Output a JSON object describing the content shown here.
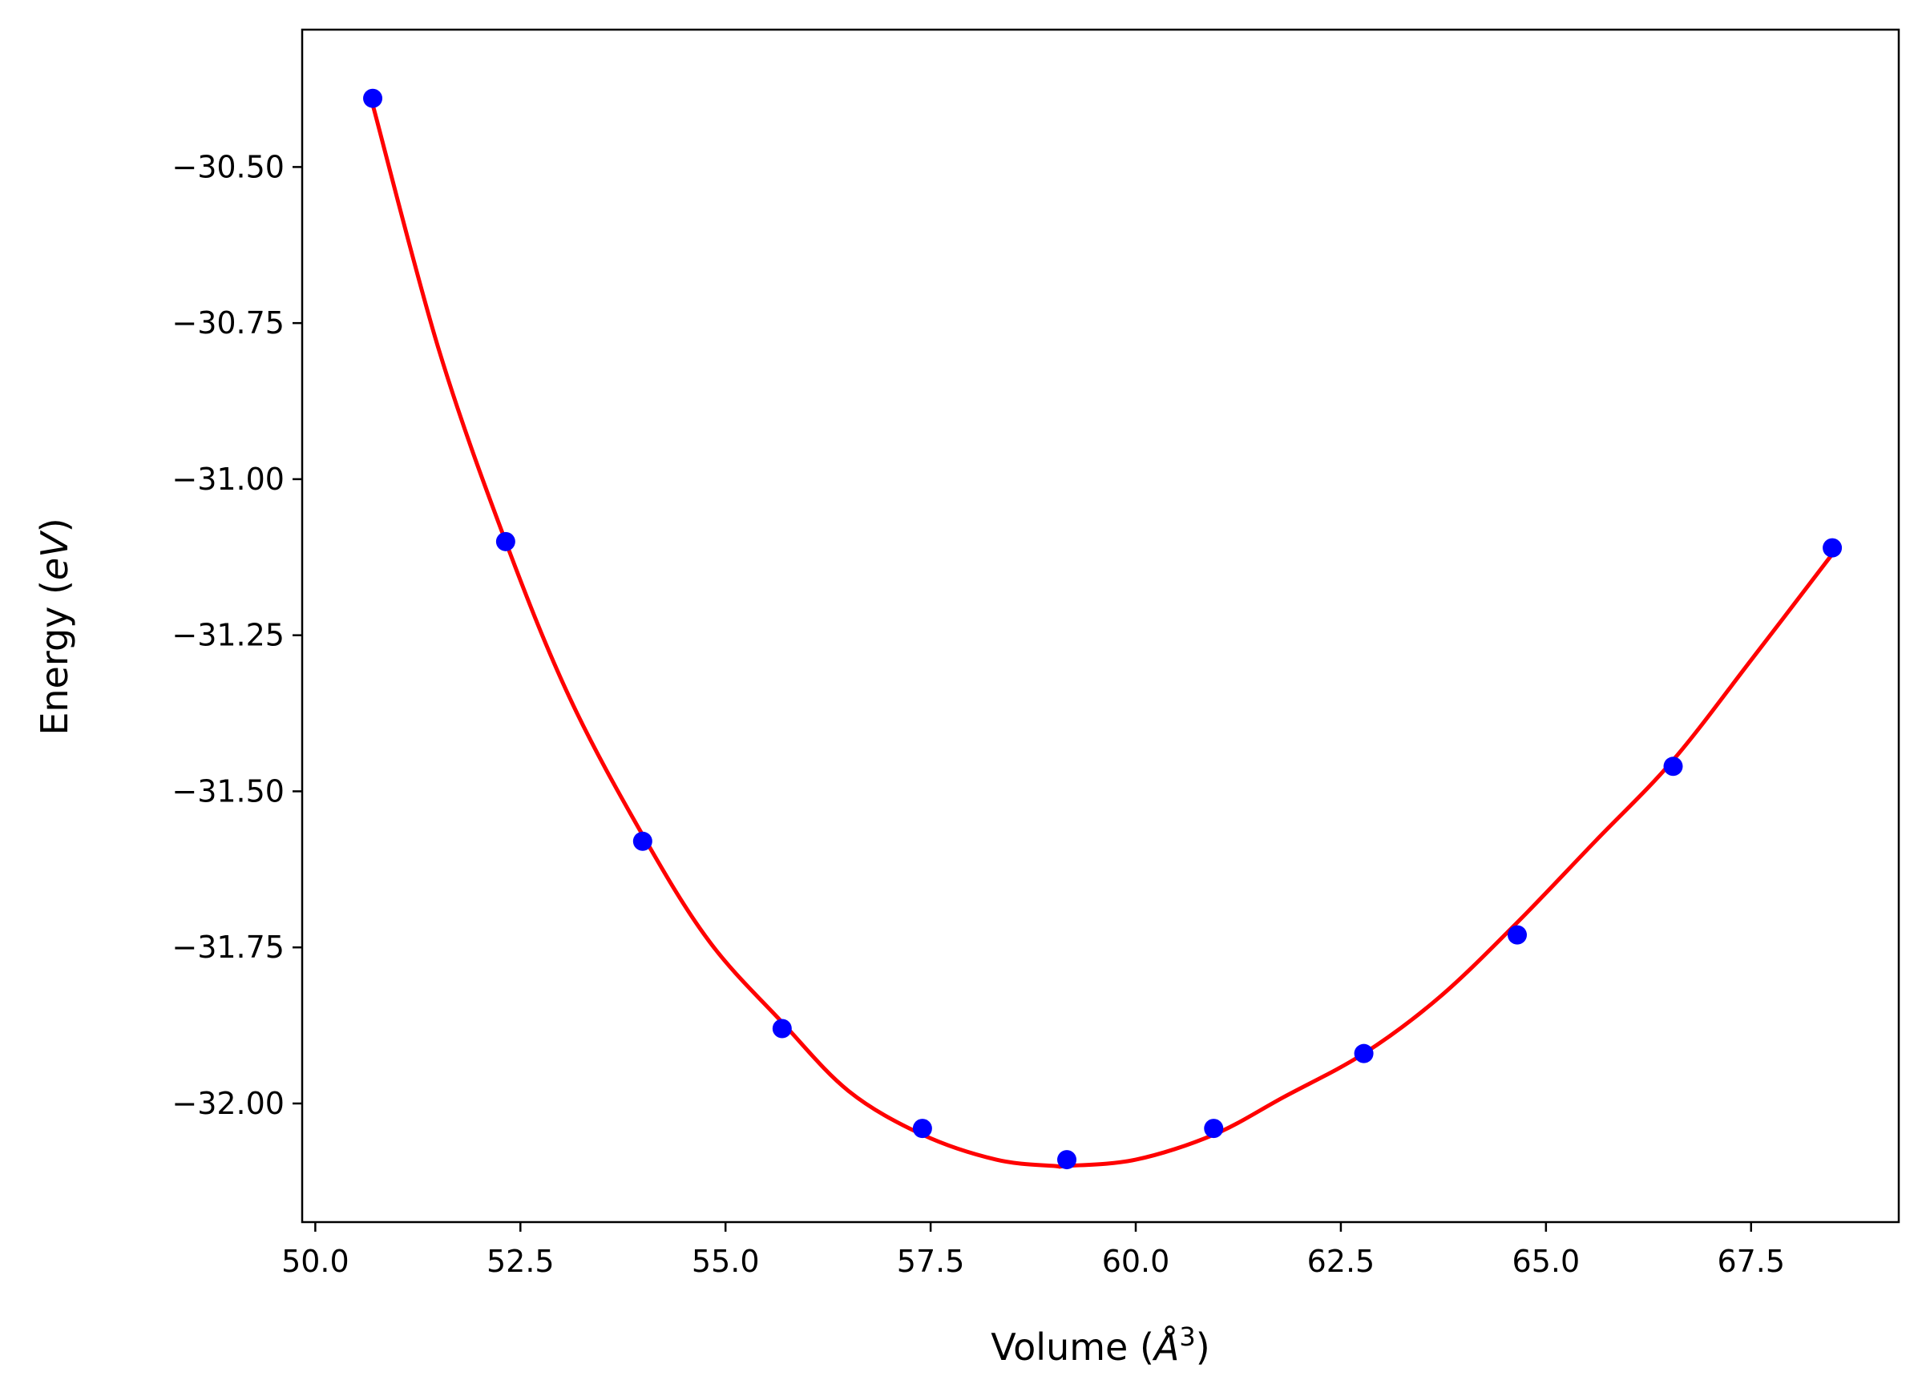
{
  "chart_data": {
    "type": "scatter",
    "title": "",
    "xlabel": "Volume",
    "xlabel_unit_symbol": "Å",
    "xlabel_unit_exponent": "3",
    "ylabel": "Energy",
    "ylabel_unit": "eV",
    "xlim": [
      49.84,
      69.3
    ],
    "ylim": [
      -32.19,
      -30.28
    ],
    "x_ticks": [
      50.0,
      52.5,
      55.0,
      57.5,
      60.0,
      62.5,
      65.0,
      67.5
    ],
    "x_tick_labels": [
      "50.0",
      "52.5",
      "55.0",
      "57.5",
      "60.0",
      "62.5",
      "65.0",
      "67.5"
    ],
    "y_ticks": [
      -30.5,
      -30.75,
      -31.0,
      -31.25,
      -31.5,
      -31.75,
      -32.0
    ],
    "y_tick_labels": [
      "−30.50",
      "−30.75",
      "−31.00",
      "−31.25",
      "−31.50",
      "−31.75",
      "−32.00"
    ],
    "grid": false,
    "series": [
      {
        "kind": "points",
        "color": "#0000ff",
        "x": [
          50.7,
          52.32,
          53.99,
          55.69,
          57.4,
          59.16,
          60.95,
          62.78,
          64.65,
          66.55,
          68.49
        ],
        "y": [
          -30.39,
          -31.1,
          -31.58,
          -31.88,
          -32.04,
          -32.09,
          -32.04,
          -31.92,
          -31.73,
          -31.46,
          -31.11
        ]
      },
      {
        "kind": "fit-curve",
        "color": "#ff0000",
        "x": [
          50.7,
          51.5,
          52.32,
          53.1,
          53.99,
          54.8,
          55.69,
          56.5,
          57.4,
          58.3,
          59.0,
          59.16,
          60.0,
          60.95,
          61.8,
          62.78,
          63.7,
          64.65,
          65.6,
          66.55,
          67.5,
          68.49
        ],
        "y": [
          -30.4,
          -30.79,
          -31.1,
          -31.35,
          -31.57,
          -31.74,
          -31.87,
          -31.98,
          -32.05,
          -32.09,
          -32.1,
          -32.1,
          -32.09,
          -32.05,
          -31.99,
          -31.92,
          -31.83,
          -31.71,
          -31.58,
          -31.45,
          -31.29,
          -31.12
        ]
      }
    ]
  }
}
